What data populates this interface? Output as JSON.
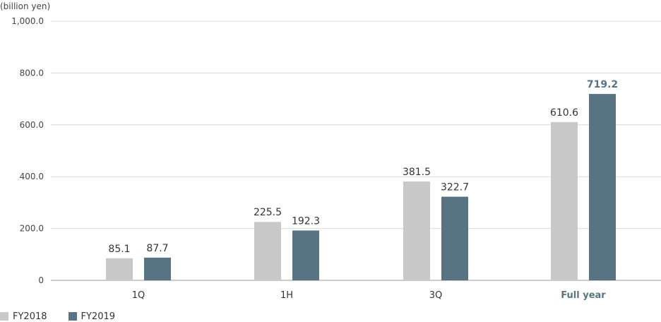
{
  "chart_data": {
    "type": "bar",
    "unit_label": "(billion yen)",
    "categories": [
      "1Q",
      "1H",
      "3Q",
      "Full year"
    ],
    "highlight_category": "Full year",
    "series": [
      {
        "name": "FY2018",
        "values": [
          85.1,
          225.5,
          381.5,
          610.6
        ],
        "labels": [
          "85.1",
          "225.5",
          "381.5",
          "610.6"
        ],
        "color": "#c8c8c8"
      },
      {
        "name": "FY2019",
        "values": [
          87.7,
          192.3,
          322.7,
          719.2
        ],
        "labels": [
          "87.7",
          "192.3",
          "322.7",
          "719.2"
        ],
        "color": "#587482"
      }
    ],
    "ylim": [
      0,
      1000
    ],
    "yticks": [
      0,
      200,
      400,
      600,
      800,
      1000
    ],
    "ytick_labels": [
      "0",
      "200.0",
      "400.0",
      "600.0",
      "800.0",
      "1,000.0"
    ],
    "grid": true,
    "legend_position": "bottom-left",
    "colors": {
      "axis_text": "#444444",
      "grid": "#d9d9d9",
      "highlight_text": "#587482"
    }
  }
}
